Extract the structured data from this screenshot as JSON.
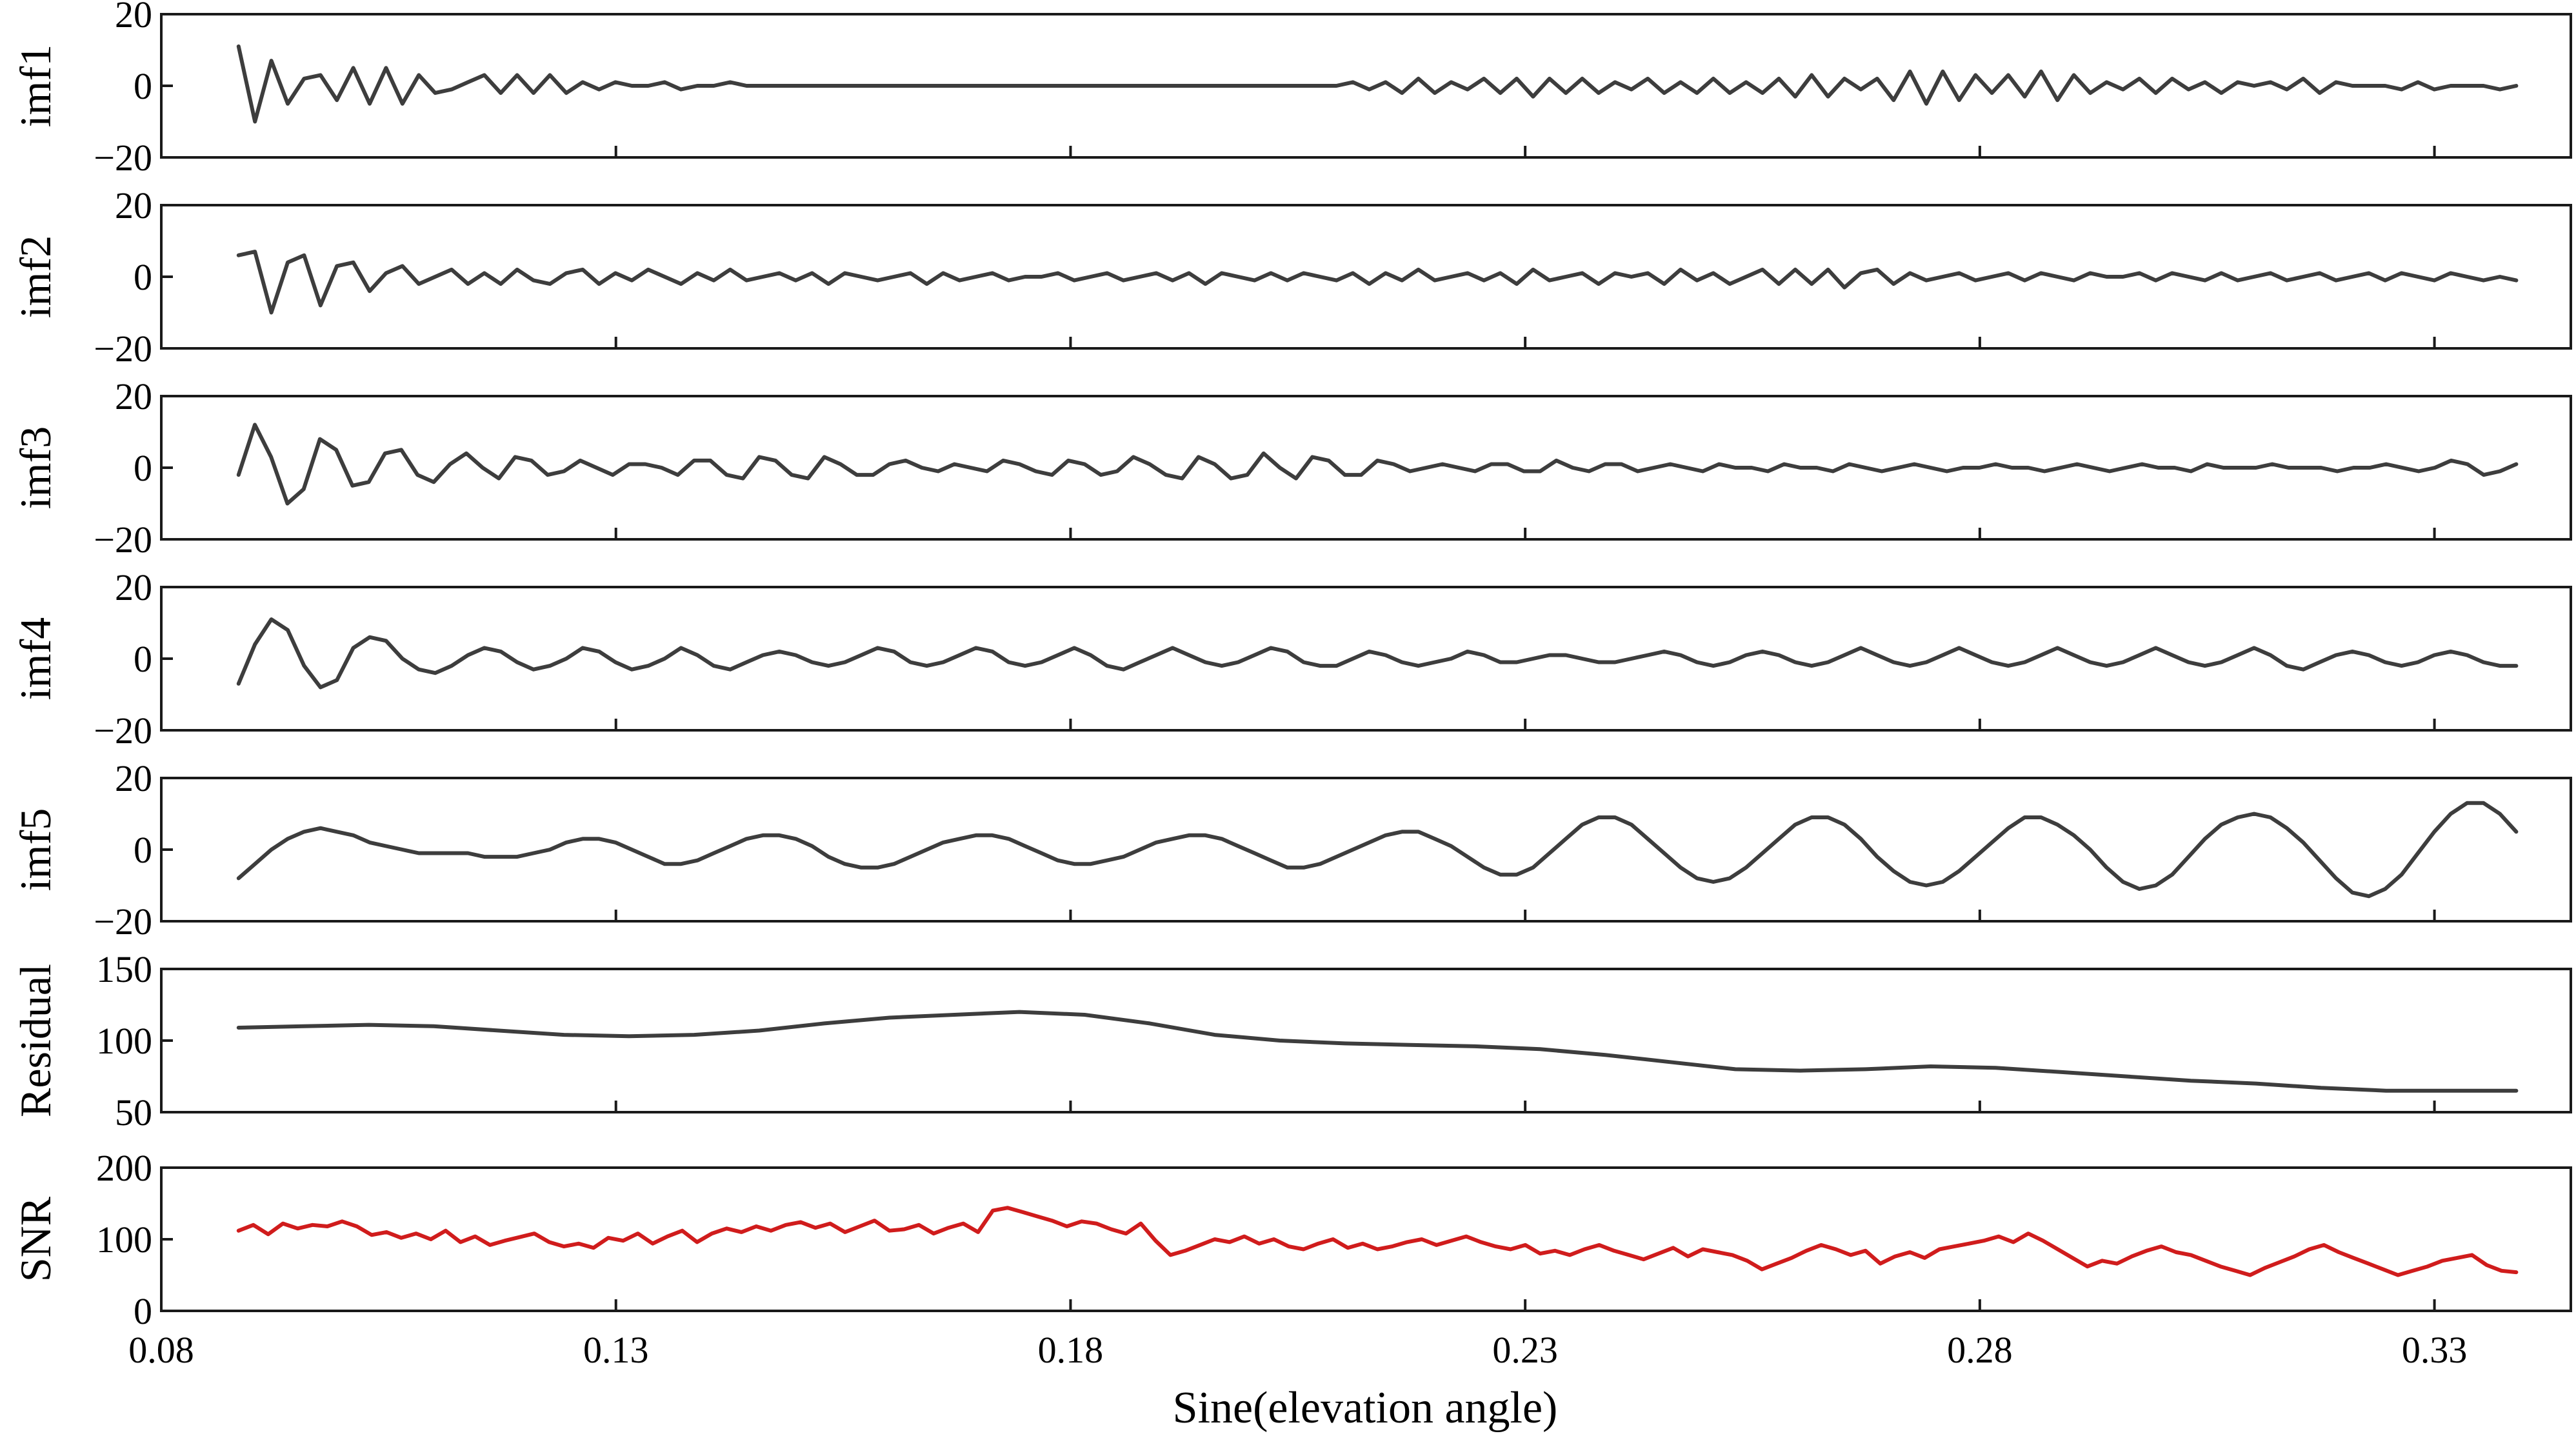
{
  "figure": {
    "xlabel": "Sine(elevation angle)",
    "xlim": [
      0.08,
      0.345
    ],
    "xticks": [
      0.08,
      0.13,
      0.18,
      0.23,
      0.28,
      0.33
    ],
    "xtick_labels": [
      "0.08",
      "0.13",
      "0.18",
      "0.23",
      "0.28",
      "0.33"
    ],
    "x_start": 0.0885,
    "x_end": 0.339
  },
  "colors": {
    "dark": "#3d3d3d",
    "snr": "#d01c1c",
    "axis": "#1a1a1a"
  },
  "chart_data": [
    {
      "type": "line",
      "ylabel": "imf1",
      "ylim": [
        -20,
        20
      ],
      "yticks": [
        -20,
        0,
        20
      ],
      "ytick_labels": [
        "−20",
        "0",
        "20"
      ],
      "color": "#3d3d3d",
      "series": [
        {
          "values": [
            11,
            -10,
            7,
            -5,
            2,
            3,
            -4,
            5,
            -5,
            5,
            -5,
            3,
            -2,
            -1,
            1,
            3,
            -2,
            3,
            -2,
            3,
            -2,
            1,
            -1,
            1,
            0,
            0,
            1,
            -1,
            0,
            0,
            1,
            0,
            0,
            0,
            0,
            0,
            0,
            0,
            0,
            0,
            0,
            0,
            0,
            0,
            0,
            0,
            0,
            0,
            0,
            0,
            0,
            0,
            0,
            0,
            0,
            0,
            0,
            0,
            0,
            0,
            0,
            0,
            0,
            0,
            0,
            0,
            0,
            0,
            1,
            -1,
            1,
            -2,
            2,
            -2,
            1,
            -1,
            2,
            -2,
            2,
            -3,
            2,
            -2,
            2,
            -2,
            1,
            -1,
            2,
            -2,
            1,
            -2,
            2,
            -2,
            1,
            -2,
            2,
            -3,
            3,
            -3,
            2,
            -1,
            2,
            -4,
            4,
            -5,
            4,
            -4,
            3,
            -2,
            3,
            -3,
            4,
            -4,
            3,
            -2,
            1,
            -1,
            2,
            -2,
            2,
            -1,
            1,
            -2,
            1,
            0,
            1,
            -1,
            2,
            -2,
            1,
            0,
            0,
            0,
            -1,
            1,
            -1,
            0,
            0,
            0,
            -1,
            0
          ]
        }
      ]
    },
    {
      "type": "line",
      "ylabel": "imf2",
      "ylim": [
        -20,
        20
      ],
      "yticks": [
        -20,
        0,
        20
      ],
      "ytick_labels": [
        "−20",
        "0",
        "20"
      ],
      "color": "#3d3d3d",
      "series": [
        {
          "values": [
            6,
            7,
            -10,
            4,
            6,
            -8,
            3,
            4,
            -4,
            1,
            3,
            -2,
            0,
            2,
            -2,
            1,
            -2,
            2,
            -1,
            -2,
            1,
            2,
            -2,
            1,
            -1,
            2,
            0,
            -2,
            1,
            -1,
            2,
            -1,
            0,
            1,
            -1,
            1,
            -2,
            1,
            0,
            -1,
            0,
            1,
            -2,
            1,
            -1,
            0,
            1,
            -1,
            0,
            0,
            1,
            -1,
            0,
            1,
            -1,
            0,
            1,
            -1,
            1,
            -2,
            1,
            0,
            -1,
            1,
            -1,
            1,
            0,
            -1,
            1,
            -2,
            1,
            -1,
            2,
            -1,
            0,
            1,
            -1,
            1,
            -2,
            2,
            -1,
            0,
            1,
            -2,
            1,
            0,
            1,
            -2,
            2,
            -1,
            1,
            -2,
            0,
            2,
            -2,
            2,
            -2,
            2,
            -3,
            1,
            2,
            -2,
            1,
            -1,
            0,
            1,
            -1,
            0,
            1,
            -1,
            1,
            0,
            -1,
            1,
            0,
            0,
            1,
            -1,
            1,
            0,
            -1,
            1,
            -1,
            0,
            1,
            -1,
            0,
            1,
            -1,
            0,
            1,
            -1,
            1,
            0,
            -1,
            1,
            0,
            -1,
            0,
            -1
          ]
        }
      ]
    },
    {
      "type": "line",
      "ylabel": "imf3",
      "ylim": [
        -20,
        20
      ],
      "yticks": [
        -20,
        0,
        20
      ],
      "ytick_labels": [
        "−20",
        "0",
        "20"
      ],
      "color": "#3d3d3d",
      "series": [
        {
          "values": [
            -2,
            12,
            3,
            -10,
            -6,
            8,
            5,
            -5,
            -4,
            4,
            5,
            -2,
            -4,
            1,
            4,
            0,
            -3,
            3,
            2,
            -2,
            -1,
            2,
            0,
            -2,
            1,
            1,
            0,
            -2,
            2,
            2,
            -2,
            -3,
            3,
            2,
            -2,
            -3,
            3,
            1,
            -2,
            -2,
            1,
            2,
            0,
            -1,
            1,
            0,
            -1,
            2,
            1,
            -1,
            -2,
            2,
            1,
            -2,
            -1,
            3,
            1,
            -2,
            -3,
            3,
            1,
            -3,
            -2,
            4,
            0,
            -3,
            3,
            2,
            -2,
            -2,
            2,
            1,
            -1,
            0,
            1,
            0,
            -1,
            1,
            1,
            -1,
            -1,
            2,
            0,
            -1,
            1,
            1,
            -1,
            0,
            1,
            0,
            -1,
            1,
            0,
            0,
            -1,
            1,
            0,
            0,
            -1,
            1,
            0,
            -1,
            0,
            1,
            0,
            -1,
            0,
            0,
            1,
            0,
            0,
            -1,
            0,
            1,
            0,
            -1,
            0,
            1,
            0,
            0,
            -1,
            1,
            0,
            0,
            0,
            1,
            0,
            0,
            0,
            -1,
            0,
            0,
            1,
            0,
            -1,
            0,
            2,
            1,
            -2,
            -1,
            1
          ]
        }
      ]
    },
    {
      "type": "line",
      "ylabel": "imf4",
      "ylim": [
        -20,
        20
      ],
      "yticks": [
        -20,
        0,
        20
      ],
      "ytick_labels": [
        "−20",
        "0",
        "20"
      ],
      "color": "#3d3d3d",
      "series": [
        {
          "values": [
            -7,
            4,
            11,
            8,
            -2,
            -8,
            -6,
            3,
            6,
            5,
            0,
            -3,
            -4,
            -2,
            1,
            3,
            2,
            -1,
            -3,
            -2,
            0,
            3,
            2,
            -1,
            -3,
            -2,
            0,
            3,
            1,
            -2,
            -3,
            -1,
            1,
            2,
            1,
            -1,
            -2,
            -1,
            1,
            3,
            2,
            -1,
            -2,
            -1,
            1,
            3,
            2,
            -1,
            -2,
            -1,
            1,
            3,
            1,
            -2,
            -3,
            -1,
            1,
            3,
            1,
            -1,
            -2,
            -1,
            1,
            3,
            2,
            -1,
            -2,
            -2,
            0,
            2,
            1,
            -1,
            -2,
            -1,
            0,
            2,
            1,
            -1,
            -1,
            0,
            1,
            1,
            0,
            -1,
            -1,
            0,
            1,
            2,
            1,
            -1,
            -2,
            -1,
            1,
            2,
            1,
            -1,
            -2,
            -1,
            1,
            3,
            1,
            -1,
            -2,
            -1,
            1,
            3,
            1,
            -1,
            -2,
            -1,
            1,
            3,
            1,
            -1,
            -2,
            -1,
            1,
            3,
            1,
            -1,
            -2,
            -1,
            1,
            3,
            1,
            -2,
            -3,
            -1,
            1,
            2,
            1,
            -1,
            -2,
            -1,
            1,
            2,
            1,
            -1,
            -2,
            -2
          ]
        }
      ]
    },
    {
      "type": "line",
      "ylabel": "imf5",
      "ylim": [
        -20,
        20
      ],
      "yticks": [
        -20,
        0,
        20
      ],
      "ytick_labels": [
        "−20",
        "0",
        "20"
      ],
      "color": "#3d3d3d",
      "series": [
        {
          "values": [
            -8,
            -4,
            0,
            3,
            5,
            6,
            5,
            4,
            2,
            1,
            0,
            -1,
            -1,
            -1,
            -1,
            -2,
            -2,
            -2,
            -1,
            0,
            2,
            3,
            3,
            2,
            0,
            -2,
            -4,
            -4,
            -3,
            -1,
            1,
            3,
            4,
            4,
            3,
            1,
            -2,
            -4,
            -5,
            -5,
            -4,
            -2,
            0,
            2,
            3,
            4,
            4,
            3,
            1,
            -1,
            -3,
            -4,
            -4,
            -3,
            -2,
            0,
            2,
            3,
            4,
            4,
            3,
            1,
            -1,
            -3,
            -5,
            -5,
            -4,
            -2,
            0,
            2,
            4,
            5,
            5,
            3,
            1,
            -2,
            -5,
            -7,
            -7,
            -5,
            -1,
            3,
            7,
            9,
            9,
            7,
            3,
            -1,
            -5,
            -8,
            -9,
            -8,
            -5,
            -1,
            3,
            7,
            9,
            9,
            7,
            3,
            -2,
            -6,
            -9,
            -10,
            -9,
            -6,
            -2,
            2,
            6,
            9,
            9,
            7,
            4,
            0,
            -5,
            -9,
            -11,
            -10,
            -7,
            -2,
            3,
            7,
            9,
            10,
            9,
            6,
            2,
            -3,
            -8,
            -12,
            -13,
            -11,
            -7,
            -1,
            5,
            10,
            13,
            13,
            10,
            5
          ]
        }
      ]
    },
    {
      "type": "line",
      "ylabel": "Residual",
      "ylim": [
        50,
        150
      ],
      "yticks": [
        50,
        100,
        150
      ],
      "ytick_labels": [
        "50",
        "100",
        "150"
      ],
      "color": "#3d3d3d",
      "series": [
        {
          "values": [
            109,
            110,
            111,
            110,
            107,
            104,
            103,
            104,
            107,
            112,
            116,
            118,
            120,
            118,
            112,
            104,
            100,
            98,
            97,
            96,
            94,
            90,
            85,
            80,
            79,
            80,
            82,
            81,
            78,
            75,
            72,
            70,
            67,
            65,
            65,
            65
          ]
        }
      ]
    },
    {
      "type": "line",
      "ylabel": "SNR",
      "ylim": [
        0,
        200
      ],
      "yticks": [
        0,
        100,
        200
      ],
      "ytick_labels": [
        "0",
        "100",
        "200"
      ],
      "color": "#d01c1c",
      "series": [
        {
          "values": [
            112,
            120,
            107,
            122,
            115,
            120,
            118,
            125,
            118,
            106,
            110,
            102,
            108,
            100,
            112,
            96,
            104,
            92,
            98,
            103,
            108,
            96,
            90,
            94,
            88,
            102,
            98,
            108,
            94,
            104,
            112,
            96,
            108,
            115,
            110,
            118,
            112,
            120,
            124,
            116,
            122,
            110,
            118,
            126,
            112,
            114,
            120,
            108,
            116,
            122,
            110,
            140,
            144,
            138,
            132,
            126,
            118,
            125,
            122,
            114,
            108,
            122,
            98,
            78,
            84,
            92,
            100,
            96,
            104,
            94,
            100,
            90,
            86,
            94,
            100,
            88,
            94,
            86,
            90,
            96,
            100,
            92,
            98,
            104,
            96,
            90,
            86,
            92,
            80,
            84,
            78,
            86,
            92,
            84,
            78,
            72,
            80,
            88,
            76,
            86,
            82,
            78,
            70,
            58,
            66,
            74,
            84,
            92,
            86,
            78,
            84,
            66,
            76,
            82,
            74,
            86,
            90,
            94,
            98,
            104,
            96,
            108,
            98,
            86,
            74,
            62,
            70,
            66,
            76,
            84,
            90,
            82,
            78,
            70,
            62,
            56,
            50,
            60,
            68,
            76,
            86,
            92,
            82,
            74,
            66,
            58,
            50,
            56,
            62,
            70,
            74,
            78,
            64,
            56,
            54
          ]
        }
      ]
    }
  ]
}
